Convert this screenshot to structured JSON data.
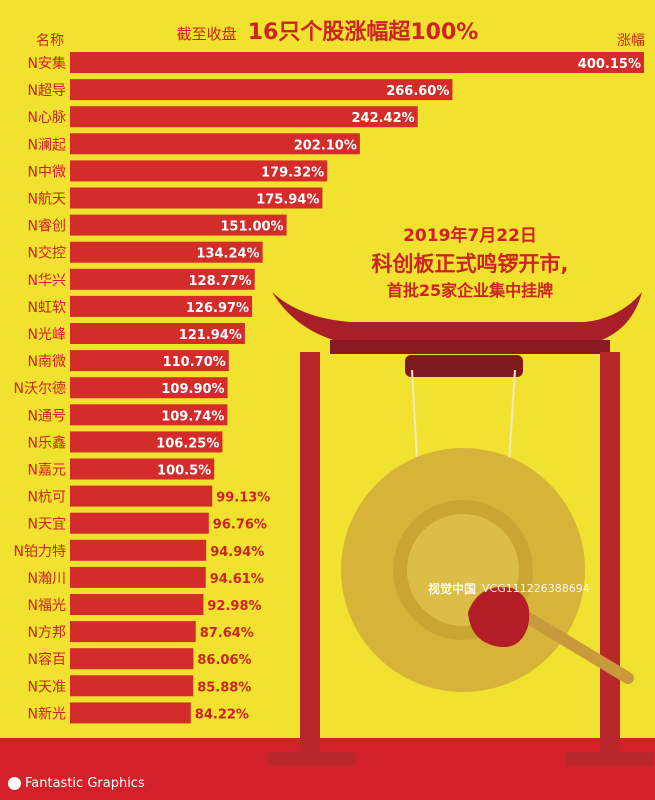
{
  "header": {
    "title_prefix": "截至收盘",
    "title_main": "16只个股涨幅超100%",
    "col_name": "名称",
    "col_value": "涨幅"
  },
  "event": {
    "date": "2019年7月22日",
    "headline": "科创板正式鸣锣开市,",
    "subline": "首批25家企业集中挂牌"
  },
  "footer": {
    "brand": "Fantastic Graphics"
  },
  "watermark": {
    "logo": "视觉中国",
    "id": "VCG111226388694"
  },
  "colors": {
    "background": "#f0e22e",
    "bar": "#d42b2b",
    "bar_label_inside": "#ffffff",
    "bar_label_outside": "#cf2222",
    "gong": "#d4b33c",
    "frame": "#b8282b"
  },
  "chart_data": {
    "type": "bar",
    "orientation": "horizontal",
    "title": "16只个股涨幅超100%",
    "categories": [
      "N安集",
      "N超导",
      "N心脉",
      "N澜起",
      "N中微",
      "N航天",
      "N睿创",
      "N交控",
      "N华兴",
      "N虹软",
      "N光峰",
      "N南微",
      "N沃尔德",
      "N通号",
      "N乐鑫",
      "N嘉元",
      "N杭可",
      "N天宜",
      "N铂力特",
      "N瀚川",
      "N福光",
      "N方邦",
      "N容百",
      "N天准",
      "N新光"
    ],
    "values": [
      400.15,
      266.6,
      242.42,
      202.1,
      179.32,
      175.94,
      151.0,
      134.24,
      128.77,
      126.97,
      121.94,
      110.7,
      109.9,
      109.74,
      106.25,
      100.5,
      99.13,
      96.76,
      94.94,
      94.61,
      92.98,
      87.64,
      86.06,
      85.88,
      84.22
    ],
    "labels": [
      "400.15%",
      "266.60%",
      "242.42%",
      "202.10%",
      "179.32%",
      "175.94%",
      "151.00%",
      "134.24%",
      "128.77%",
      "126.97%",
      "121.94%",
      "110.70%",
      "109.90%",
      "109.74%",
      "106.25%",
      "100.5%",
      "99.13%",
      "96.76%",
      "94.94%",
      "94.61%",
      "92.98%",
      "87.64%",
      "86.06%",
      "85.88%",
      "84.22%"
    ],
    "xlabel": "",
    "ylabel": "",
    "grid": false
  }
}
